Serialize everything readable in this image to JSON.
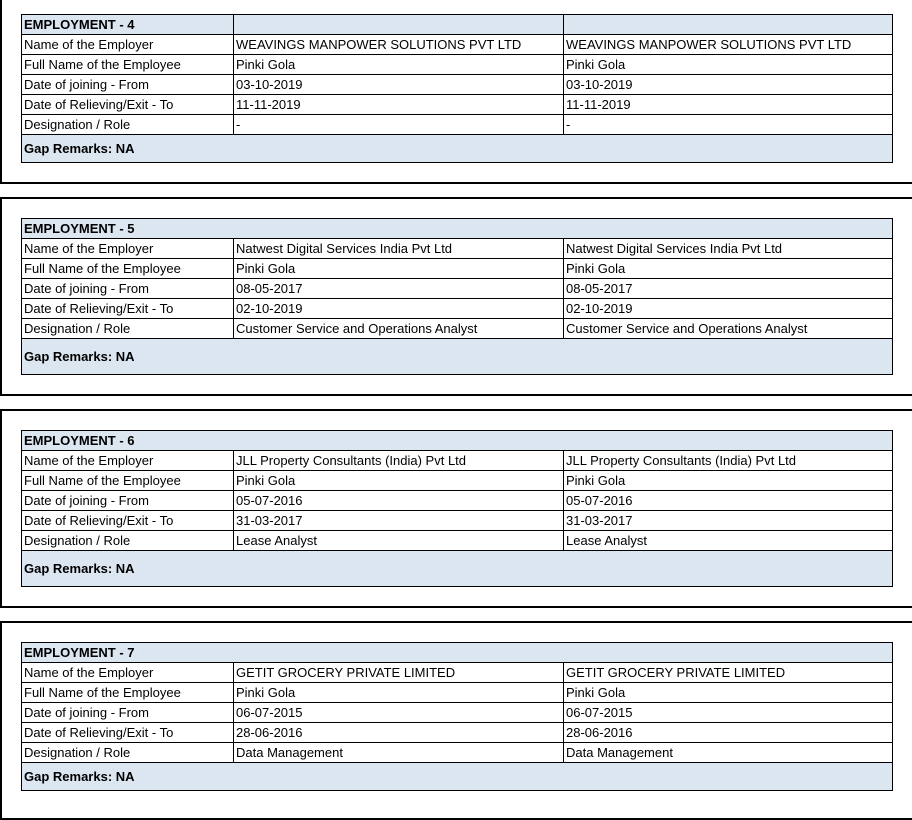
{
  "colors": {
    "header_bg": "#dce6f1",
    "border": "#000000"
  },
  "row_labels": [
    "Name of the Employer",
    "Full Name of the Employee",
    "Date of joining - From",
    "Date of Relieving/Exit - To",
    "Designation / Role"
  ],
  "employments": [
    {
      "title": "EMPLOYMENT - 4",
      "values": [
        "WEAVINGS MANPOWER SOLUTIONS PVT LTD",
        "Pinki Gola",
        "03-10-2019",
        "11-11-2019",
        "-"
      ],
      "verified": [
        "WEAVINGS MANPOWER SOLUTIONS PVT LTD",
        "Pinki Gola",
        "03-10-2019",
        "11-11-2019",
        "-"
      ],
      "gap_remarks": "Gap Remarks: NA"
    },
    {
      "title": "EMPLOYMENT - 5",
      "values": [
        "Natwest Digital Services India Pvt Ltd",
        "Pinki Gola",
        "08-05-2017",
        "02-10-2019",
        "Customer Service and Operations Analyst"
      ],
      "verified": [
        "Natwest Digital Services India Pvt Ltd",
        "Pinki Gola",
        "08-05-2017",
        "02-10-2019",
        "Customer Service and Operations Analyst"
      ],
      "gap_remarks": "Gap Remarks: NA"
    },
    {
      "title": "EMPLOYMENT - 6",
      "values": [
        "JLL Property Consultants (India) Pvt Ltd",
        "Pinki Gola",
        "05-07-2016",
        "31-03-2017",
        "Lease Analyst"
      ],
      "verified": [
        "JLL Property Consultants (India) Pvt Ltd",
        "Pinki Gola",
        "05-07-2016",
        "31-03-2017",
        "Lease Analyst"
      ],
      "gap_remarks": "Gap Remarks: NA"
    },
    {
      "title": "EMPLOYMENT - 7",
      "values": [
        "GETIT GROCERY PRIVATE LIMITED",
        "Pinki Gola",
        "06-07-2015",
        "28-06-2016",
        "Data Management"
      ],
      "verified": [
        "GETIT GROCERY PRIVATE LIMITED",
        "Pinki Gola",
        "06-07-2015",
        "28-06-2016",
        "Data Management"
      ],
      "gap_remarks": "Gap Remarks: NA"
    }
  ]
}
